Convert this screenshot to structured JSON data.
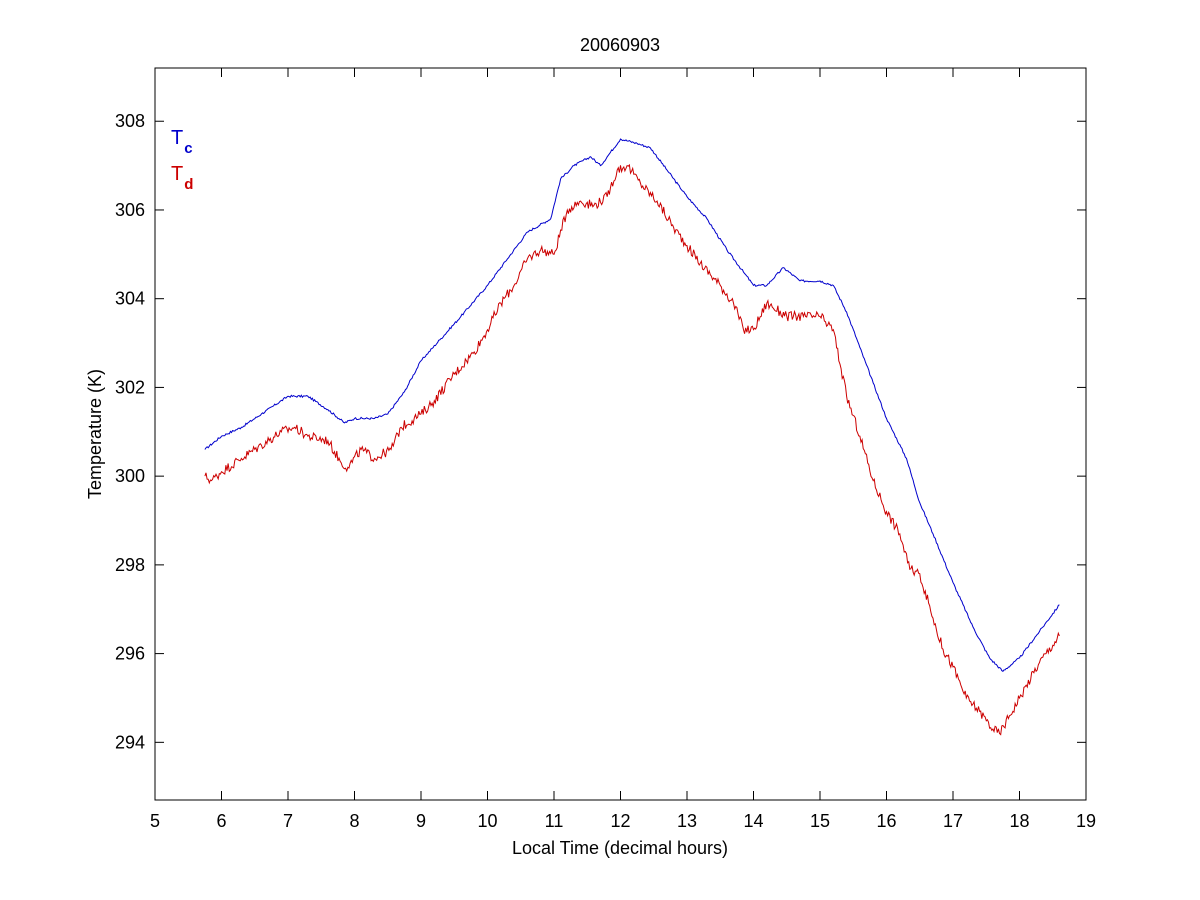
{
  "chart_data": {
    "type": "line",
    "title": "20060903",
    "xlabel": "Local Time (decimal hours)",
    "ylabel": "Temperature (K)",
    "xlim": [
      5,
      19
    ],
    "ylim": [
      292.7,
      309.2
    ],
    "xticks": [
      5,
      6,
      7,
      8,
      9,
      10,
      11,
      12,
      13,
      14,
      15,
      16,
      17,
      18,
      19
    ],
    "yticks": [
      294,
      296,
      298,
      300,
      302,
      304,
      306,
      308
    ],
    "grid": false,
    "legend_placement": "top-left",
    "series": [
      {
        "name": "T",
        "subscript": "c",
        "color": "#0000cc",
        "x": [
          5.75,
          6.0,
          6.3,
          6.6,
          7.0,
          7.3,
          7.6,
          7.85,
          8.0,
          8.3,
          8.5,
          8.75,
          9.0,
          9.3,
          9.6,
          10.0,
          10.3,
          10.6,
          10.95,
          11.1,
          11.3,
          11.55,
          11.7,
          11.85,
          12.0,
          12.25,
          12.45,
          12.7,
          13.0,
          13.3,
          13.6,
          13.85,
          14.0,
          14.2,
          14.45,
          14.7,
          15.0,
          15.2,
          15.4,
          15.6,
          15.8,
          16.0,
          16.3,
          16.5,
          16.7,
          17.0,
          17.3,
          17.55,
          17.75,
          18.0,
          18.3,
          18.6
        ],
        "values": [
          300.6,
          300.9,
          301.1,
          301.4,
          301.8,
          301.8,
          301.5,
          301.2,
          301.3,
          301.3,
          301.4,
          301.9,
          302.6,
          303.1,
          303.6,
          304.3,
          304.9,
          305.5,
          305.8,
          306.7,
          307.0,
          307.2,
          307.0,
          307.3,
          307.6,
          307.5,
          307.4,
          306.9,
          306.3,
          305.8,
          305.1,
          304.6,
          304.3,
          304.3,
          304.7,
          304.4,
          304.4,
          304.3,
          303.7,
          302.9,
          302.1,
          301.3,
          300.4,
          299.4,
          298.7,
          297.6,
          296.6,
          295.9,
          295.6,
          295.9,
          296.5,
          297.1
        ]
      },
      {
        "name": "T",
        "subscript": "d",
        "color": "#cc0000",
        "x": [
          5.75,
          5.85,
          6.0,
          6.3,
          6.6,
          6.9,
          7.1,
          7.3,
          7.6,
          7.8,
          7.9,
          8.1,
          8.3,
          8.55,
          8.7,
          9.0,
          9.2,
          9.5,
          9.8,
          10.0,
          10.2,
          10.4,
          10.6,
          10.8,
          11.0,
          11.2,
          11.4,
          11.6,
          11.8,
          11.95,
          12.1,
          12.3,
          12.55,
          12.8,
          13.0,
          13.2,
          13.5,
          13.7,
          13.85,
          14.0,
          14.2,
          14.5,
          14.75,
          15.0,
          15.2,
          15.4,
          15.6,
          15.8,
          16.0,
          16.2,
          16.35,
          16.5,
          16.7,
          16.85,
          17.0,
          17.2,
          17.4,
          17.6,
          17.7,
          17.85,
          18.0,
          18.3,
          18.6
        ],
        "values": [
          300.0,
          299.9,
          300.1,
          300.4,
          300.7,
          301.0,
          301.1,
          300.9,
          300.8,
          300.3,
          300.2,
          300.6,
          300.4,
          300.6,
          301.1,
          301.4,
          301.7,
          302.3,
          302.8,
          303.3,
          303.9,
          304.3,
          304.9,
          305.1,
          305.0,
          306.0,
          306.2,
          306.1,
          306.3,
          306.9,
          307.0,
          306.6,
          306.2,
          305.6,
          305.2,
          304.8,
          304.3,
          303.9,
          303.3,
          303.3,
          303.9,
          303.6,
          303.6,
          303.6,
          303.3,
          301.8,
          300.9,
          299.9,
          299.2,
          298.7,
          297.9,
          297.8,
          296.8,
          296.1,
          295.7,
          295.0,
          294.7,
          294.3,
          294.2,
          294.6,
          295.0,
          295.8,
          296.4
        ]
      }
    ]
  }
}
